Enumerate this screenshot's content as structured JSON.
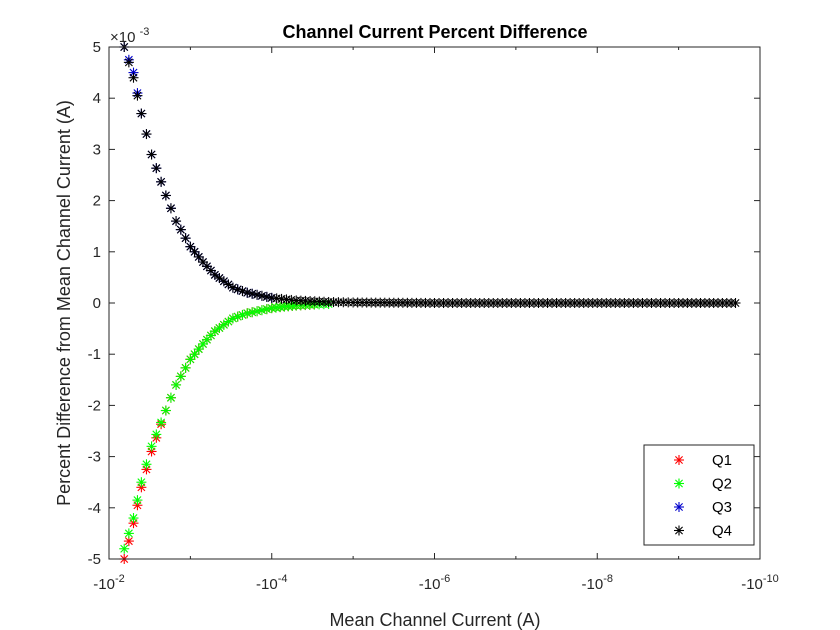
{
  "chart_data": {
    "type": "scatter",
    "title": "Channel Current Percent Difference",
    "xlabel": "Mean Channel Current (A)",
    "ylabel": "Percent Difference from Mean Channel Current (A)",
    "x_scale": "log-reversed",
    "xlim": [
      -0.01,
      -1e-10
    ],
    "ylim": [
      -0.005,
      0.005
    ],
    "y_exponent_label": "×10",
    "y_exponent_power": "-3",
    "x_ticks": [
      {
        "value": -0.01,
        "base": "-10",
        "power": "-2"
      },
      {
        "value": -0.0001,
        "base": "-10",
        "power": "-4"
      },
      {
        "value": -1e-06,
        "base": "-10",
        "power": "-6"
      },
      {
        "value": -1e-08,
        "base": "-10",
        "power": "-8"
      },
      {
        "value": -1e-10,
        "base": "-10",
        "power": "-10"
      }
    ],
    "y_ticks": [
      {
        "value": 0.005,
        "label": "5"
      },
      {
        "value": 0.004,
        "label": "4"
      },
      {
        "value": 0.003,
        "label": "3"
      },
      {
        "value": 0.002,
        "label": "2"
      },
      {
        "value": 0.001,
        "label": "1"
      },
      {
        "value": 0,
        "label": "0"
      },
      {
        "value": -0.001,
        "label": "-1"
      },
      {
        "value": -0.002,
        "label": "-2"
      },
      {
        "value": -0.003,
        "label": "-3"
      },
      {
        "value": -0.004,
        "label": "-4"
      },
      {
        "value": -0.005,
        "label": "-5"
      }
    ],
    "legend_position": "bottom-right",
    "marker": "asterisk",
    "series": [
      {
        "name": "Q1",
        "color": "#ff0000",
        "x": [
          -0.0065,
          -0.005,
          -0.004,
          -0.003,
          -0.002,
          -0.0015,
          -0.001,
          -0.0007,
          -0.0005,
          -0.0003,
          -0.0002,
          -0.0001,
          -7e-05,
          -5e-05,
          -3e-05
        ],
        "y": [
          -0.005,
          -0.0043,
          -0.0036,
          -0.0029,
          -0.0021,
          -0.0016,
          -0.0011,
          -0.0008,
          -0.00055,
          -0.0003,
          -0.0002,
          -0.0001,
          -7e-05,
          -5e-05,
          -3e-05
        ]
      },
      {
        "name": "Q2",
        "color": "#00ff00",
        "x": [
          -0.0065,
          -0.005,
          -0.004,
          -0.003,
          -0.002,
          -0.0015,
          -0.001,
          -0.0007,
          -0.0005,
          -0.0003,
          -0.0002,
          -0.0001,
          -7e-05,
          -5e-05,
          -3e-05,
          -2e-05
        ],
        "y": [
          -0.0048,
          -0.0042,
          -0.0035,
          -0.0028,
          -0.0021,
          -0.0016,
          -0.0011,
          -0.0008,
          -0.00055,
          -0.0003,
          -0.0002,
          -0.0001,
          -7e-05,
          -5e-05,
          -3e-05,
          -2e-05
        ]
      },
      {
        "name": "Q3",
        "color": "#0000cc",
        "x": [
          -0.0065,
          -0.005,
          -0.004,
          -0.003,
          -0.002,
          -0.0015,
          -0.001,
          -0.0007,
          -0.0005,
          -0.0003,
          -0.0002,
          -0.0001
        ],
        "y": [
          0.005,
          0.0045,
          0.0037,
          0.0029,
          0.0021,
          0.0016,
          0.0011,
          0.0008,
          0.00055,
          0.0003,
          0.0002,
          0.0001
        ]
      },
      {
        "name": "Q4",
        "color": "#000000",
        "x": [
          -0.0065,
          -0.005,
          -0.004,
          -0.003,
          -0.002,
          -0.0015,
          -0.001,
          -0.0007,
          -0.0005,
          -0.0003,
          -0.0002,
          -0.0001,
          -5e-05,
          -2e-05,
          -1e-05,
          -1e-06,
          -1e-07,
          -1e-08,
          -1e-09,
          -2e-10
        ],
        "y": [
          0.005,
          0.0044,
          0.0037,
          0.0029,
          0.0021,
          0.0016,
          0.0011,
          0.0008,
          0.00055,
          0.0003,
          0.0002,
          0.0001,
          5e-05,
          2e-05,
          1e-05,
          0,
          0,
          0,
          0,
          0
        ]
      }
    ]
  }
}
